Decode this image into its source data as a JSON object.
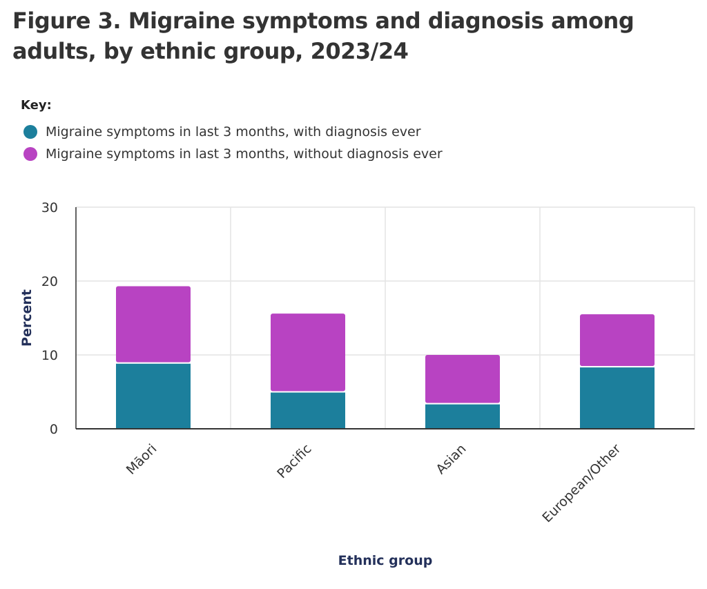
{
  "chart_data": {
    "type": "bar",
    "stacked": true,
    "title": "Figure 3. Migraine symptoms and diagnosis among adults, by ethnic group, 2023/24",
    "legend_title": "Key:",
    "legend_position": "top-left",
    "xlabel": "Ethnic group",
    "ylabel": "Percent",
    "ylim": [
      0,
      30
    ],
    "yticks": [
      0,
      10,
      20,
      30
    ],
    "grid": true,
    "categories": [
      "Māori",
      "Pacific",
      "Asian",
      "European/Other"
    ],
    "series": [
      {
        "name": "Migraine symptoms in last 3 months, with diagnosis ever",
        "color": "#1c7f9c",
        "values": [
          8.9,
          5.0,
          3.4,
          8.4
        ]
      },
      {
        "name": "Migraine symptoms in last 3 months, without diagnosis ever",
        "color": "#b843c2",
        "values": [
          10.4,
          10.6,
          6.6,
          7.1
        ]
      }
    ]
  }
}
